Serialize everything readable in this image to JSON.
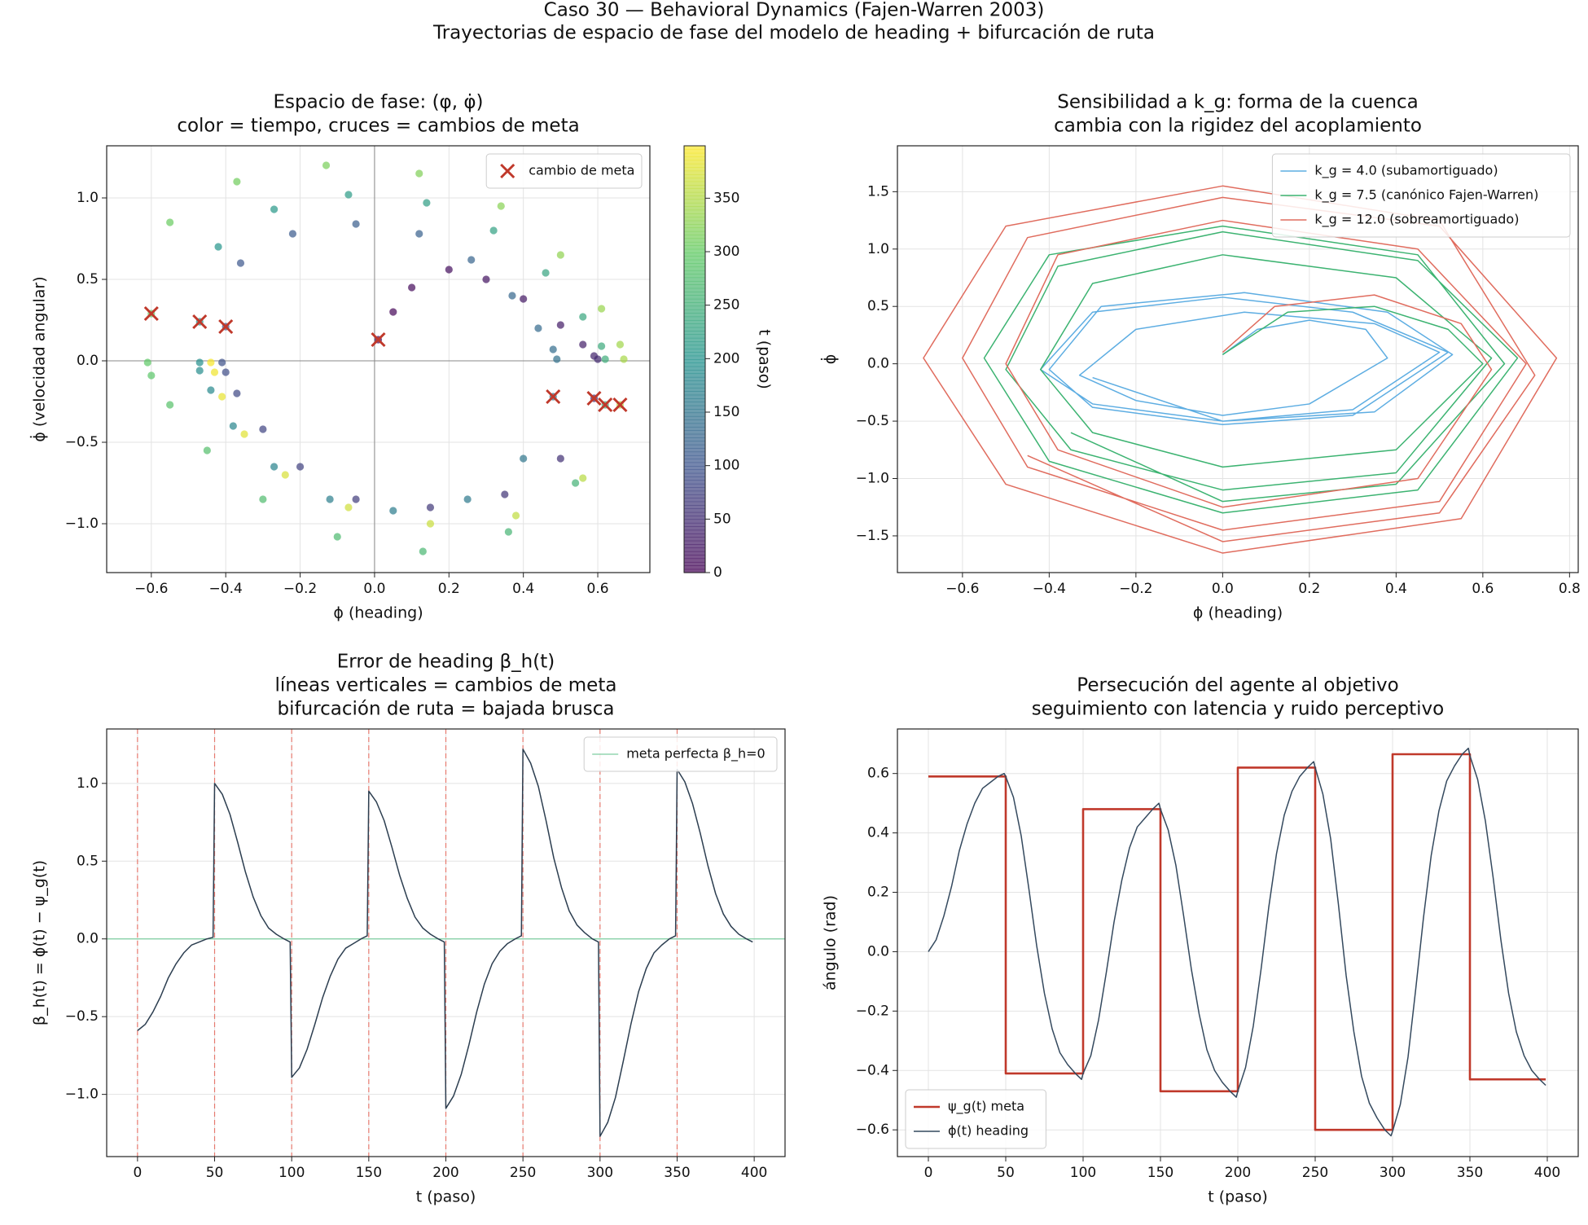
{
  "title": "Caso 30 — Behavioral Dynamics (Fajen-Warren 2003)",
  "subtitle": "Trayectorias de espacio de fase del modelo de heading + bifurcación de ruta",
  "chart_data": [
    {
      "type": "scatter",
      "title": [
        "Espacio de fase: (φ, φ̇)",
        "color = tiempo, cruces = cambios de meta"
      ],
      "xlabel": "ϕ (heading)",
      "ylabel": "ϕ̇ (velocidad angular)",
      "x": [
        0.01,
        0.05,
        0.1,
        0.2,
        0.3,
        0.4,
        0.5,
        0.56,
        0.59,
        0.6,
        0.59,
        0.5,
        0.35,
        0.15,
        -0.05,
        -0.2,
        -0.3,
        -0.37,
        -0.4,
        -0.41,
        -0.4,
        -0.36,
        -0.22,
        -0.05,
        0.12,
        0.26,
        0.37,
        0.44,
        0.48,
        0.49,
        0.48,
        0.4,
        0.25,
        0.05,
        -0.12,
        -0.27,
        -0.38,
        -0.44,
        -0.47,
        -0.47,
        -0.47,
        -0.42,
        -0.27,
        -0.07,
        0.14,
        0.32,
        0.46,
        0.56,
        0.61,
        0.62,
        0.62,
        0.54,
        0.36,
        0.13,
        -0.1,
        -0.3,
        -0.45,
        -0.55,
        -0.6,
        -0.61,
        -0.6,
        -0.55,
        -0.37,
        -0.13,
        0.12,
        0.34,
        0.5,
        0.61,
        0.66,
        0.67,
        0.66,
        0.56,
        0.38,
        0.15,
        -0.07,
        -0.24,
        -0.35,
        -0.41,
        -0.43,
        -0.44
      ],
      "y": [
        0.13,
        0.3,
        0.45,
        0.56,
        0.5,
        0.38,
        0.22,
        0.1,
        0.03,
        0.01,
        -0.23,
        -0.6,
        -0.82,
        -0.9,
        -0.85,
        -0.65,
        -0.42,
        -0.2,
        -0.07,
        -0.01,
        0.21,
        0.6,
        0.78,
        0.84,
        0.78,
        0.62,
        0.4,
        0.2,
        0.07,
        0.01,
        -0.22,
        -0.6,
        -0.85,
        -0.92,
        -0.85,
        -0.65,
        -0.4,
        -0.18,
        -0.06,
        -0.01,
        0.24,
        0.7,
        0.93,
        1.02,
        0.97,
        0.8,
        0.54,
        0.27,
        0.09,
        0.01,
        -0.27,
        -0.75,
        -1.05,
        -1.17,
        -1.08,
        -0.85,
        -0.55,
        -0.27,
        -0.09,
        -0.01,
        0.29,
        0.85,
        1.1,
        1.2,
        1.15,
        0.95,
        0.65,
        0.32,
        0.1,
        0.01,
        -0.27,
        -0.72,
        -0.95,
        -1.0,
        -0.9,
        -0.7,
        -0.45,
        -0.22,
        -0.07,
        -0.01
      ],
      "t": [
        0,
        5,
        10,
        15,
        20,
        25,
        30,
        35,
        40,
        45,
        50,
        55,
        60,
        65,
        70,
        75,
        80,
        85,
        90,
        95,
        100,
        105,
        110,
        115,
        120,
        125,
        130,
        135,
        140,
        145,
        150,
        155,
        160,
        165,
        170,
        175,
        180,
        185,
        190,
        195,
        200,
        205,
        210,
        215,
        220,
        225,
        230,
        235,
        240,
        245,
        250,
        255,
        260,
        265,
        270,
        275,
        280,
        285,
        290,
        295,
        300,
        305,
        310,
        315,
        320,
        325,
        330,
        335,
        340,
        345,
        350,
        355,
        360,
        365,
        370,
        375,
        380,
        385,
        390,
        395
      ],
      "colormap": "viridis",
      "alpha": 0.7,
      "colorbar": {
        "label": "t (paso)",
        "lim": [
          0,
          399
        ],
        "ticks": [
          0,
          50,
          100,
          150,
          200,
          250,
          300,
          350
        ]
      },
      "series": [
        {
          "name": "cambio de meta",
          "color": "#c0392b",
          "marker": "x",
          "x": [
            0.01,
            0.59,
            -0.4,
            0.48,
            -0.47,
            0.62,
            -0.6,
            0.66
          ],
          "y": [
            0.13,
            -0.23,
            0.21,
            -0.22,
            0.24,
            -0.27,
            0.29,
            -0.27
          ]
        }
      ],
      "zero_lines": true,
      "grid": true,
      "legend": "upper right",
      "xlim": [
        -0.72,
        0.74
      ],
      "xticks": [
        {
          "value": -0.6,
          "label": "−0.6"
        },
        {
          "value": -0.4,
          "label": "−0.4"
        },
        {
          "value": -0.2,
          "label": "−0.2"
        },
        {
          "value": 0,
          "label": "0.0"
        },
        {
          "value": 0.2,
          "label": "0.2"
        },
        {
          "value": 0.4,
          "label": "0.4"
        },
        {
          "value": 0.6,
          "label": "0.6"
        }
      ],
      "ylim": [
        -1.3,
        1.32
      ],
      "yticks": [
        {
          "value": -1,
          "label": "−1.0"
        },
        {
          "value": -0.5,
          "label": "−0.5"
        },
        {
          "value": 0,
          "label": "0.0"
        },
        {
          "value": 0.5,
          "label": "0.5"
        },
        {
          "value": 1,
          "label": "1.0"
        }
      ]
    },
    {
      "type": "line",
      "title": [
        "Sensibilidad a k_g: forma de la cuenca",
        "cambia con la rigidez del acoplamiento"
      ],
      "xlabel": "ϕ (heading)",
      "ylabel": "ϕ̇",
      "series": [
        {
          "name": "k_g = 4.0 (subamortiguado)",
          "color": "#5dade2",
          "x": [
            0,
            0.08,
            0.2,
            0.33,
            0.38,
            0.2,
            0,
            -0.2,
            -0.33,
            -0.2,
            0.05,
            0.35,
            0.5,
            0.3,
            0,
            -0.3,
            -0.42,
            -0.3,
            0,
            0.3,
            0.52,
            0.3,
            0,
            -0.3,
            -0.4,
            -0.28,
            0.05,
            0.38,
            0.53,
            0.35,
            0,
            -0.3
          ],
          "values": [
            0.08,
            0.3,
            0.38,
            0.3,
            0.05,
            -0.35,
            -0.45,
            -0.32,
            -0.1,
            0.3,
            0.45,
            0.35,
            0.1,
            -0.4,
            -0.5,
            -0.35,
            -0.05,
            0.45,
            0.58,
            0.45,
            0.1,
            -0.45,
            -0.53,
            -0.38,
            -0.05,
            0.5,
            0.62,
            0.45,
            0.08,
            -0.42,
            -0.5,
            -0.12
          ]
        },
        {
          "name": "k_g = 7.5 (canónico Fajen-Warren)",
          "color": "#3cb371",
          "x": [
            0,
            0.15,
            0.35,
            0.52,
            0.6,
            0.4,
            0,
            -0.3,
            -0.42,
            -0.3,
            0,
            0.4,
            0.62,
            0.4,
            0,
            -0.35,
            -0.5,
            -0.38,
            0,
            0.45,
            0.68,
            0.45,
            0,
            -0.4,
            -0.55,
            -0.4,
            0,
            0.45,
            0.65,
            0.4,
            0,
            -0.35
          ],
          "values": [
            0.08,
            0.45,
            0.5,
            0.3,
            0,
            -0.75,
            -0.9,
            -0.6,
            -0.05,
            0.7,
            0.95,
            0.75,
            0.05,
            -0.95,
            -1.1,
            -0.75,
            -0.05,
            0.85,
            1.15,
            0.9,
            0.05,
            -1.1,
            -1.3,
            -0.85,
            0.05,
            0.95,
            1.2,
            0.95,
            0,
            -1.05,
            -1.2,
            -0.6
          ]
        },
        {
          "name": "k_g = 12.0 (sobreamortiguado)",
          "color": "#e06c5e",
          "x": [
            0,
            0.12,
            0.35,
            0.55,
            0.62,
            0.45,
            0,
            -0.38,
            -0.5,
            -0.38,
            0,
            0.45,
            0.7,
            0.5,
            0,
            -0.45,
            -0.6,
            -0.45,
            0,
            0.5,
            0.77,
            0.55,
            0,
            -0.5,
            -0.69,
            -0.5,
            0,
            0.5,
            0.72,
            0.5,
            0,
            -0.45
          ],
          "values": [
            0.1,
            0.5,
            0.6,
            0.35,
            -0.05,
            -1.0,
            -1.25,
            -0.75,
            0,
            0.95,
            1.25,
            1.0,
            0,
            -1.2,
            -1.45,
            -0.9,
            0.05,
            1.1,
            1.45,
            1.2,
            0.05,
            -1.35,
            -1.65,
            -1.05,
            0.05,
            1.2,
            1.55,
            1.25,
            -0.1,
            -1.3,
            -1.55,
            -0.8
          ]
        }
      ],
      "grid": true,
      "legend": "upper right",
      "xlim": [
        -0.75,
        0.82
      ],
      "xticks": [
        {
          "value": -0.6,
          "label": "−0.6"
        },
        {
          "value": -0.4,
          "label": "−0.4"
        },
        {
          "value": -0.2,
          "label": "−0.2"
        },
        {
          "value": 0,
          "label": "0.0"
        },
        {
          "value": 0.2,
          "label": "0.2"
        },
        {
          "value": 0.4,
          "label": "0.4"
        },
        {
          "value": 0.6,
          "label": "0.6"
        },
        {
          "value": 0.8,
          "label": "0.8"
        }
      ],
      "ylim": [
        -1.82,
        1.9
      ],
      "yticks": [
        {
          "value": -1.5,
          "label": "−1.5"
        },
        {
          "value": -1,
          "label": "−1.0"
        },
        {
          "value": -0.5,
          "label": "−0.5"
        },
        {
          "value": 0,
          "label": "0.0"
        },
        {
          "value": 0.5,
          "label": "0.5"
        },
        {
          "value": 1,
          "label": "1.0"
        },
        {
          "value": 1.5,
          "label": "1.5"
        }
      ]
    },
    {
      "type": "line",
      "title": [
        "Error de heading β_h(t)",
        "líneas verticales = cambios de meta",
        "bifurcación de ruta = bajada brusca"
      ],
      "xlabel": "t (paso)",
      "ylabel": "β_h(t) = ϕ(t) − ψ_g(t)",
      "x": [
        0,
        5,
        10,
        15,
        20,
        25,
        30,
        35,
        40,
        45,
        49,
        50,
        55,
        60,
        65,
        70,
        75,
        80,
        85,
        90,
        95,
        99,
        100,
        105,
        110,
        115,
        120,
        125,
        130,
        135,
        140,
        145,
        149,
        150,
        155,
        160,
        165,
        170,
        175,
        180,
        185,
        190,
        195,
        199,
        200,
        205,
        210,
        215,
        220,
        225,
        230,
        235,
        240,
        245,
        249,
        250,
        255,
        260,
        265,
        270,
        275,
        280,
        285,
        290,
        295,
        299,
        300,
        305,
        310,
        315,
        320,
        325,
        330,
        335,
        340,
        345,
        349,
        350,
        355,
        360,
        365,
        370,
        375,
        380,
        385,
        390,
        395,
        399
      ],
      "series": [
        {
          "name": null,
          "color": "#2c3e50",
          "values": [
            -0.59,
            -0.55,
            -0.47,
            -0.37,
            -0.25,
            -0.16,
            -0.09,
            -0.04,
            -0.02,
            0,
            0.01,
            1.0,
            0.93,
            0.8,
            0.62,
            0.43,
            0.27,
            0.15,
            0.07,
            0.03,
            0,
            -0.02,
            -0.89,
            -0.83,
            -0.71,
            -0.55,
            -0.38,
            -0.24,
            -0.13,
            -0.06,
            -0.03,
            0,
            0.02,
            0.95,
            0.88,
            0.76,
            0.59,
            0.41,
            0.26,
            0.14,
            0.07,
            0.03,
            0,
            -0.02,
            -1.09,
            -1.01,
            -0.87,
            -0.68,
            -0.47,
            -0.29,
            -0.16,
            -0.08,
            -0.03,
            0,
            0.02,
            1.22,
            1.13,
            0.98,
            0.76,
            0.52,
            0.33,
            0.18,
            0.09,
            0.04,
            0,
            -0.02,
            -1.27,
            -1.18,
            -1.02,
            -0.79,
            -0.55,
            -0.34,
            -0.19,
            -0.09,
            -0.04,
            0,
            0.02,
            1.09,
            1.01,
            0.87,
            0.68,
            0.47,
            0.29,
            0.16,
            0.08,
            0.03,
            0,
            -0.02
          ]
        }
      ],
      "hlines": [
        {
          "name": "meta perfecta β_h=0",
          "value": 0,
          "color": "#7dcea0"
        }
      ],
      "vlines": {
        "values": [
          0,
          50,
          100,
          150,
          200,
          250,
          300,
          350
        ],
        "color": "#e74c3c"
      },
      "grid": true,
      "legend": "upper right",
      "xlim": [
        -20,
        420
      ],
      "xticks": [
        0,
        50,
        100,
        150,
        200,
        250,
        300,
        350,
        400
      ],
      "ylim": [
        -1.4,
        1.35
      ],
      "yticks": [
        {
          "value": -1,
          "label": "−1.0"
        },
        {
          "value": -0.5,
          "label": "−0.5"
        },
        {
          "value": 0,
          "label": "0.0"
        },
        {
          "value": 0.5,
          "label": "0.5"
        },
        {
          "value": 1,
          "label": "1.0"
        }
      ]
    },
    {
      "type": "line",
      "title": [
        "Persecución del agente al objetivo",
        "seguimiento con latencia y ruido perceptivo"
      ],
      "xlabel": "t (paso)",
      "ylabel": "ángulo (rad)",
      "x": [
        0,
        5,
        10,
        15,
        20,
        25,
        30,
        35,
        40,
        45,
        49,
        50,
        55,
        60,
        65,
        70,
        75,
        80,
        85,
        90,
        95,
        99,
        100,
        105,
        110,
        115,
        120,
        125,
        130,
        135,
        140,
        145,
        149,
        150,
        155,
        160,
        165,
        170,
        175,
        180,
        185,
        190,
        195,
        199,
        200,
        205,
        210,
        215,
        220,
        225,
        230,
        235,
        240,
        245,
        249,
        250,
        255,
        260,
        265,
        270,
        275,
        280,
        285,
        290,
        295,
        299,
        300,
        305,
        310,
        315,
        320,
        325,
        330,
        335,
        340,
        345,
        349,
        350,
        355,
        360,
        365,
        370,
        375,
        380,
        385,
        390,
        395,
        399
      ],
      "series": [
        {
          "name": "ψ_g(t) meta",
          "color": "#c0392b",
          "drawstyle": "steps-post",
          "x": [
            0,
            50,
            100,
            150,
            200,
            250,
            300,
            350,
            399
          ],
          "values": [
            0.59,
            -0.41,
            0.48,
            -0.47,
            0.62,
            -0.6,
            0.665,
            -0.43,
            -0.43
          ]
        },
        {
          "name": "ϕ(t) heading",
          "color": "#34495e",
          "values": [
            0,
            0.04,
            0.12,
            0.22,
            0.34,
            0.43,
            0.5,
            0.55,
            0.57,
            0.59,
            0.6,
            0.59,
            0.52,
            0.39,
            0.21,
            0.02,
            -0.14,
            -0.26,
            -0.34,
            -0.38,
            -0.41,
            -0.43,
            -0.41,
            -0.35,
            -0.23,
            -0.07,
            0.1,
            0.24,
            0.35,
            0.42,
            0.45,
            0.48,
            0.5,
            0.48,
            0.41,
            0.29,
            0.12,
            -0.06,
            -0.21,
            -0.33,
            -0.4,
            -0.44,
            -0.47,
            -0.49,
            -0.47,
            -0.39,
            -0.25,
            -0.06,
            0.15,
            0.33,
            0.46,
            0.54,
            0.59,
            0.62,
            0.64,
            0.62,
            0.53,
            0.38,
            0.16,
            -0.08,
            -0.27,
            -0.42,
            -0.51,
            -0.56,
            -0.6,
            -0.62,
            -0.605,
            -0.515,
            -0.355,
            -0.125,
            0.115,
            0.325,
            0.475,
            0.575,
            0.625,
            0.665,
            0.685,
            0.66,
            0.58,
            0.44,
            0.25,
            0.04,
            -0.14,
            -0.27,
            -0.35,
            -0.4,
            -0.43,
            -0.45
          ]
        }
      ],
      "grid": true,
      "legend": "lower left",
      "xlim": [
        -20,
        420
      ],
      "xticks": [
        0,
        50,
        100,
        150,
        200,
        250,
        300,
        350,
        400
      ],
      "ylim": [
        -0.69,
        0.75
      ],
      "yticks": [
        {
          "value": -0.6,
          "label": "−0.6"
        },
        {
          "value": -0.4,
          "label": "−0.4"
        },
        {
          "value": -0.2,
          "label": "−0.2"
        },
        {
          "value": 0,
          "label": "0.0"
        },
        {
          "value": 0.2,
          "label": "0.2"
        },
        {
          "value": 0.4,
          "label": "0.4"
        },
        {
          "value": 0.6,
          "label": "0.6"
        }
      ]
    }
  ]
}
